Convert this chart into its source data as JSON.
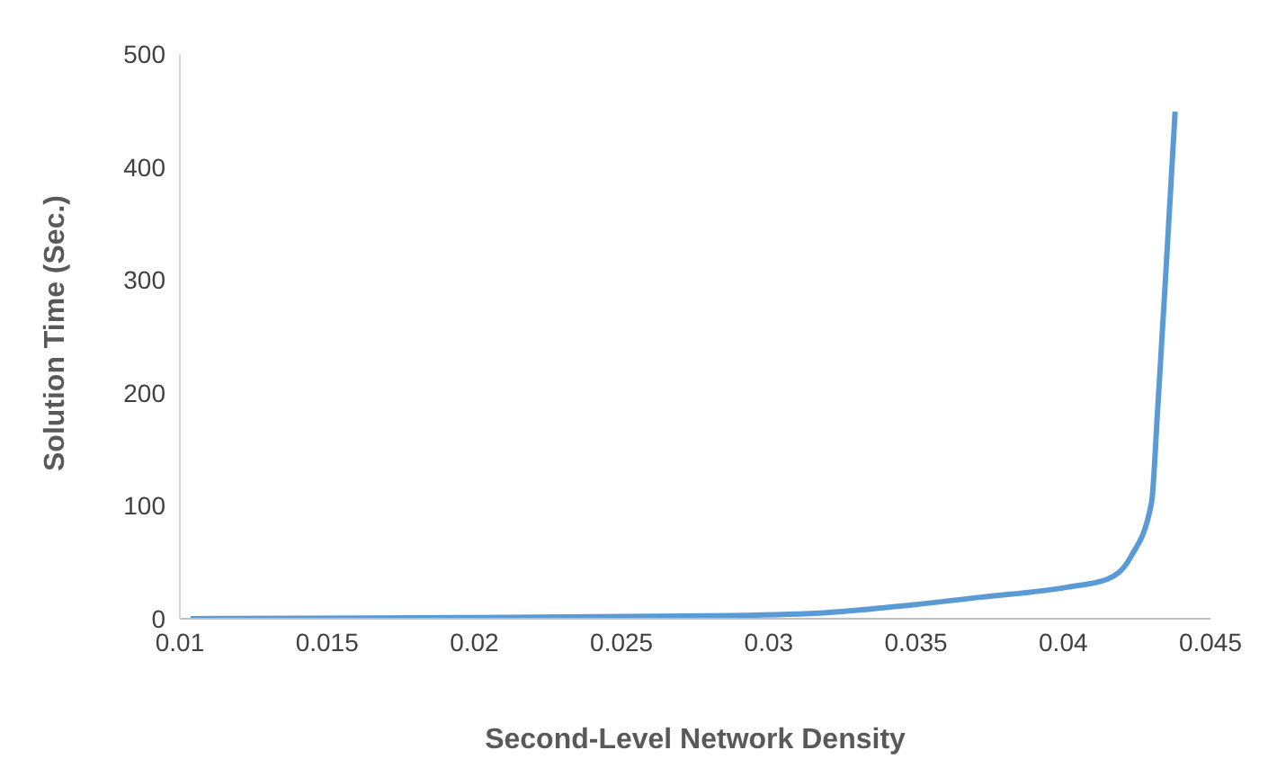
{
  "chart_data": {
    "type": "line",
    "xlabel": "Second-Level Network Density",
    "ylabel": "Solution Time (Sec.)",
    "x": [
      0.01037,
      0.02,
      0.028,
      0.0317,
      0.034,
      0.0372,
      0.04015,
      0.0415,
      0.0423,
      0.043,
      0.0432,
      0.0435,
      0.0438
    ],
    "series": [
      {
        "color": "#5b9bd5",
        "values": [
          0,
          1,
          2.5,
          5,
          10,
          19,
          28,
          35,
          55,
          103,
          182,
          313,
          449
        ]
      }
    ],
    "xlim": [
      0.01,
      0.045
    ],
    "xticks": [
      0.01,
      0.015,
      0.02,
      0.025,
      0.03,
      0.035,
      0.04,
      0.045
    ],
    "ylim": [
      0,
      500
    ],
    "yticks": [
      0,
      100,
      200,
      300,
      400,
      500
    ],
    "grid": false,
    "legend": false,
    "marker": "none",
    "line_style": "solid"
  }
}
